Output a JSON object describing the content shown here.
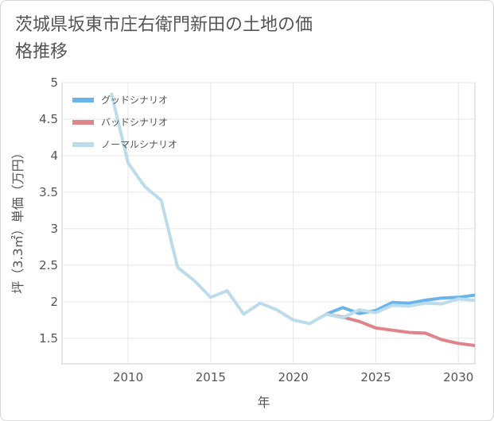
{
  "chart_data": {
    "type": "line",
    "title": "茨城県坂東市庄右衛門新田の土地の価格推移",
    "xlabel": "年",
    "ylabel": "坪（3.3㎡）単価（万円）",
    "xlim": [
      2006,
      2031
    ],
    "ylim": [
      1.15,
      5
    ],
    "x_ticks": [
      "2010",
      "2015",
      "2020",
      "2025",
      "2030"
    ],
    "y_ticks": [
      "1.5",
      "2",
      "2.5",
      "3",
      "3.5",
      "4",
      "4.5",
      "5"
    ],
    "grid": true,
    "legend_position": "top-left",
    "series": [
      {
        "name": "グッドシナリオ",
        "color": "#6ab4ec",
        "x": [
          2022,
          2023,
          2024,
          2025,
          2026,
          2027,
          2028,
          2029,
          2030,
          2031
        ],
        "y": [
          1.83,
          1.92,
          1.84,
          1.88,
          1.99,
          1.98,
          2.02,
          2.05,
          2.06,
          2.09
        ]
      },
      {
        "name": "バッドシナリオ",
        "color": "#e0848c",
        "x": [
          2022,
          2023,
          2024,
          2025,
          2026,
          2027,
          2028,
          2029,
          2030,
          2031
        ],
        "y": [
          1.83,
          1.79,
          1.73,
          1.64,
          1.61,
          1.58,
          1.57,
          1.48,
          1.43,
          1.4
        ]
      },
      {
        "name": "ノーマルシナリオ",
        "color": "#bcdcec",
        "x": [
          2009,
          2010,
          2011,
          2012,
          2013,
          2014,
          2015,
          2016,
          2017,
          2018,
          2019,
          2020,
          2021,
          2022,
          2023,
          2024,
          2025,
          2026,
          2027,
          2028,
          2029,
          2030,
          2031
        ],
        "y": [
          4.84,
          3.9,
          3.58,
          3.39,
          2.47,
          2.29,
          2.06,
          2.15,
          1.83,
          1.98,
          1.89,
          1.75,
          1.7,
          1.83,
          1.78,
          1.89,
          1.85,
          1.95,
          1.94,
          1.98,
          1.97,
          2.04,
          2.02
        ]
      }
    ]
  }
}
